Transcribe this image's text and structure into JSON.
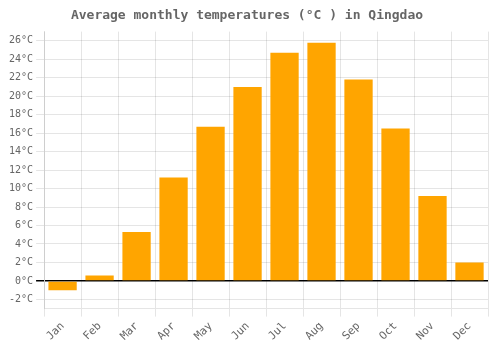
{
  "chart_data": {
    "type": "bar",
    "title": "Average monthly temperatures (°C ) in Qingdao",
    "categories": [
      "Jan",
      "Feb",
      "Mar",
      "Apr",
      "May",
      "Jun",
      "Jul",
      "Aug",
      "Sep",
      "Oct",
      "Nov",
      "Dec"
    ],
    "values": [
      -1.0,
      0.6,
      5.3,
      11.2,
      16.7,
      21.0,
      24.7,
      25.8,
      21.8,
      16.5,
      9.2,
      2.0
    ],
    "color": "#FFA500",
    "ylim": [
      -3,
      27
    ],
    "yticks": [
      {
        "value": -2,
        "label": "-2°C"
      },
      {
        "value": 0,
        "label": "0°C"
      },
      {
        "value": 2,
        "label": "2°C"
      },
      {
        "value": 4,
        "label": "4°C"
      },
      {
        "value": 6,
        "label": "6°C"
      },
      {
        "value": 8,
        "label": "8°C"
      },
      {
        "value": 10,
        "label": "10°C"
      },
      {
        "value": 12,
        "label": "12°C"
      },
      {
        "value": 14,
        "label": "14°C"
      },
      {
        "value": 16,
        "label": "16°C"
      },
      {
        "value": 18,
        "label": "18°C"
      },
      {
        "value": 20,
        "label": "20°C"
      },
      {
        "value": 22,
        "label": "22°C"
      },
      {
        "value": 24,
        "label": "24°C"
      },
      {
        "value": 26,
        "label": "26°C"
      }
    ],
    "grid": true
  }
}
